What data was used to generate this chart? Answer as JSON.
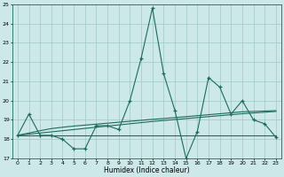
{
  "xlabel": "Humidex (Indice chaleur)",
  "xlim": [
    -0.5,
    23.5
  ],
  "ylim": [
    17,
    25
  ],
  "yticks": [
    17,
    18,
    19,
    20,
    21,
    22,
    23,
    24,
    25
  ],
  "xticks": [
    0,
    1,
    2,
    3,
    4,
    5,
    6,
    7,
    8,
    9,
    10,
    11,
    12,
    13,
    14,
    15,
    16,
    17,
    18,
    19,
    20,
    21,
    22,
    23
  ],
  "bg_color": "#cce8e8",
  "line_color": "#1e6b5e",
  "grid_color": "#a0c8c8",
  "s1": [
    18.2,
    19.3,
    18.2,
    18.2,
    18.0,
    17.5,
    17.5,
    18.7,
    18.7,
    18.5,
    20.0,
    22.2,
    24.8,
    21.4,
    19.5,
    17.0,
    18.4,
    21.2,
    20.7,
    19.3,
    20.0,
    19.0,
    18.8,
    18.1
  ],
  "s2": [
    18.2,
    18.2,
    18.2,
    18.2,
    18.2,
    18.2,
    18.2,
    18.2,
    18.2,
    18.2,
    18.2,
    18.2,
    18.2,
    18.2,
    18.2,
    18.2,
    18.2,
    18.2,
    18.2,
    18.2,
    18.2,
    18.2,
    18.2,
    18.2
  ],
  "s3": [
    18.2,
    18.32,
    18.44,
    18.55,
    18.62,
    18.68,
    18.73,
    18.78,
    18.83,
    18.88,
    18.93,
    18.98,
    19.03,
    19.07,
    19.12,
    19.17,
    19.22,
    19.27,
    19.32,
    19.37,
    19.42,
    19.44,
    19.46,
    19.48
  ],
  "s4": [
    18.2,
    18.26,
    18.32,
    18.38,
    18.44,
    18.5,
    18.56,
    18.62,
    18.68,
    18.74,
    18.8,
    18.86,
    18.92,
    18.97,
    19.02,
    19.07,
    19.12,
    19.17,
    19.22,
    19.27,
    19.32,
    19.36,
    19.4,
    19.44
  ]
}
